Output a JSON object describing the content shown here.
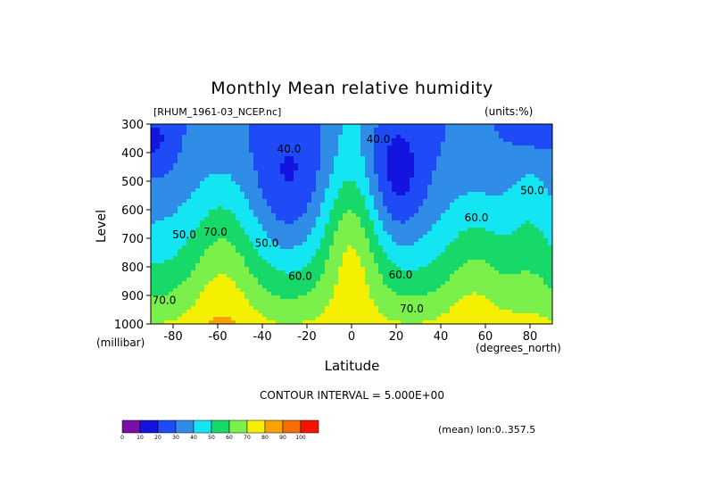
{
  "title": "Monthly Mean relative humidity",
  "dataset_label": "[RHUM_1961-03_NCEP.nc]",
  "units_label": "(units:%)",
  "y_axis": {
    "label": "Level",
    "unit": "(millibar)",
    "ticks": [
      "300",
      "400",
      "500",
      "600",
      "700",
      "800",
      "900",
      "1000"
    ]
  },
  "x_axis": {
    "label": "Latitude",
    "unit": "(degrees_north)",
    "ticks": [
      "-80",
      "-60",
      "-40",
      "-20",
      "0",
      "20",
      "40",
      "60",
      "80"
    ]
  },
  "contour_interval": "CONTOUR INTERVAL = 5.000E+00",
  "mean_info": "(mean) lon:0..357.5",
  "colorbar": {
    "labels": [
      "0",
      "10",
      "20",
      "30",
      "40",
      "50",
      "60",
      "70",
      "80",
      "90",
      "100"
    ],
    "colors": [
      "#7a0ea8",
      "#1414e0",
      "#1e4bf5",
      "#2f8de8",
      "#13e6f2",
      "#16d96a",
      "#7cf04a",
      "#f5f000",
      "#f7a200",
      "#f76c00",
      "#f21400"
    ]
  },
  "chart_data": {
    "type": "heatmap",
    "title": "Monthly Mean relative humidity",
    "xlabel": "Latitude",
    "ylabel": "Level",
    "x_unit": "degrees_north",
    "y_unit": "millibar",
    "xlim": [
      -90,
      90
    ],
    "ylim": [
      1000,
      300
    ],
    "levels": [
      0,
      10,
      20,
      30,
      40,
      50,
      60,
      70,
      80,
      90,
      100
    ],
    "contour_labels": [
      {
        "text": "40.0",
        "lat": -28,
        "lev": 400
      },
      {
        "text": "40.0",
        "lat": 12,
        "lev": 365
      },
      {
        "text": "50.0",
        "lat": -38,
        "lev": 730
      },
      {
        "text": "50.0",
        "lat": -75,
        "lev": 700
      },
      {
        "text": "50.0",
        "lat": 81,
        "lev": 545
      },
      {
        "text": "60.0",
        "lat": -23,
        "lev": 845
      },
      {
        "text": "60.0",
        "lat": 22,
        "lev": 840
      },
      {
        "text": "60.0",
        "lat": 56,
        "lev": 640
      },
      {
        "text": "70.0",
        "lat": -61,
        "lev": 690
      },
      {
        "text": "70.0",
        "lat": 27,
        "lev": 960
      },
      {
        "text": "70.0",
        "lat": -84,
        "lev": 930
      }
    ]
  }
}
